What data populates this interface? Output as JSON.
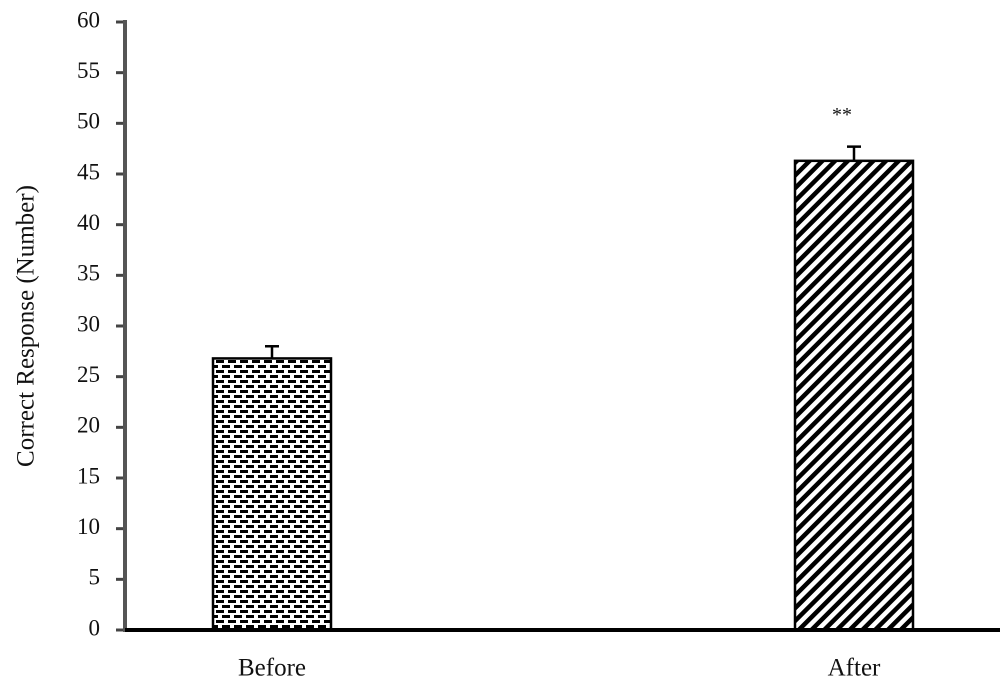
{
  "chart_data": {
    "type": "bar",
    "y_label": "Correct Response (Number)",
    "categories": [
      "Before",
      "After"
    ],
    "values": [
      26.8,
      46.3
    ],
    "errors": [
      1.2,
      1.4
    ],
    "annotation": "**",
    "color": "#000000",
    "ylim": [
      0,
      60
    ],
    "yticks": [
      0,
      5,
      10,
      15,
      20,
      25,
      30,
      35,
      40,
      45,
      50,
      55,
      60
    ],
    "grid": false
  }
}
